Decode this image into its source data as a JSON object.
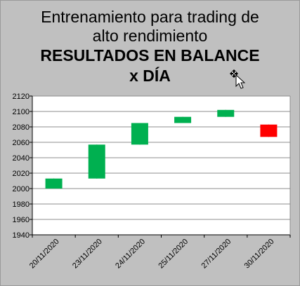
{
  "title": {
    "line1": "Entrenamiento para trading de",
    "line2": "alto rendimiento",
    "line3": "RESULTADOS EN BALANCE",
    "line4": "x DÍA"
  },
  "chart_data": {
    "type": "candlestick",
    "ylim": [
      1940,
      2120
    ],
    "yticks": [
      1940,
      1960,
      1980,
      2000,
      2020,
      2040,
      2060,
      2080,
      2100,
      2120
    ],
    "grid": true,
    "categories": [
      "20/11/2020",
      "23/11/2020",
      "24/11/2020",
      "25/11/2020",
      "27/11/2020",
      "30/11/2020"
    ],
    "candles": [
      {
        "date": "20/11/2020",
        "open": 2000,
        "close": 2013,
        "high": 2013,
        "low": 2000,
        "color": "#00b050"
      },
      {
        "date": "23/11/2020",
        "open": 2013,
        "close": 2057,
        "high": 2057,
        "low": 2013,
        "color": "#00b050"
      },
      {
        "date": "24/11/2020",
        "open": 2057,
        "close": 2085,
        "high": 2085,
        "low": 2057,
        "color": "#00b050"
      },
      {
        "date": "25/11/2020",
        "open": 2085,
        "close": 2093,
        "high": 2093,
        "low": 2085,
        "color": "#00b050"
      },
      {
        "date": "27/11/2020",
        "open": 2093,
        "close": 2102,
        "high": 2102,
        "low": 2093,
        "color": "#00b050"
      },
      {
        "date": "30/11/2020",
        "open": 2083,
        "close": 2067,
        "high": 2083,
        "low": 2067,
        "color": "#ff0000"
      }
    ]
  }
}
